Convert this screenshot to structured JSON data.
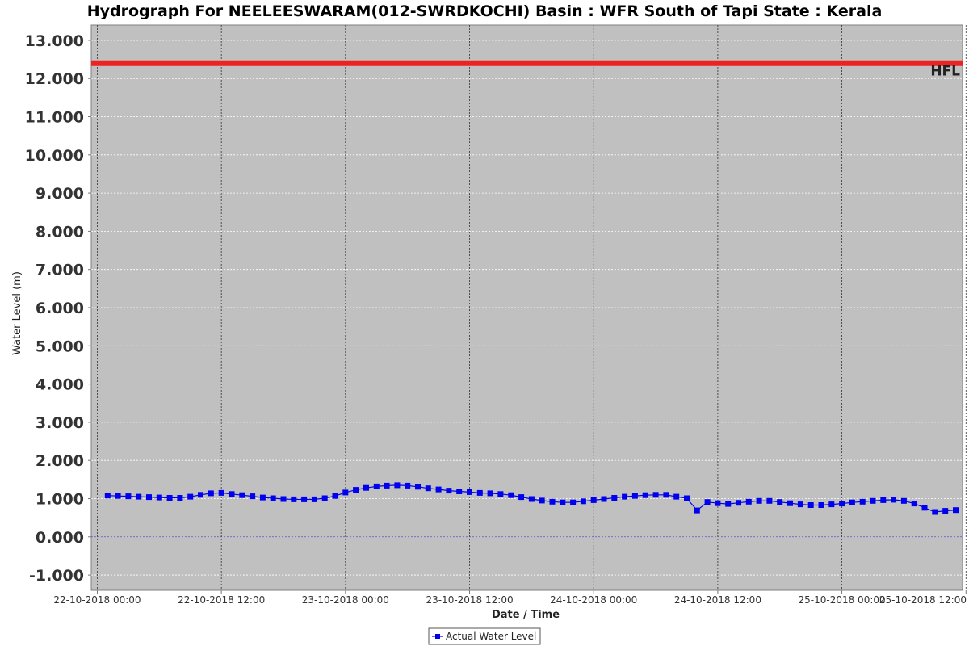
{
  "chart_data": {
    "type": "line",
    "title": "Hydrograph For NEELEESWARAM(012-SWRDKOCHI) Basin : WFR South of Tapi State : Kerala",
    "xlabel": "Date / Time",
    "ylabel": "Water Level (m)",
    "ylim": [
      -1.4,
      13.4
    ],
    "y_ticks": [
      "-1.000",
      "0.000",
      "1.000",
      "2.000",
      "3.000",
      "4.000",
      "5.000",
      "6.000",
      "7.000",
      "8.000",
      "9.000",
      "10.000",
      "11.000",
      "12.000",
      "13.000"
    ],
    "y_tick_values": [
      -1,
      0,
      1,
      2,
      3,
      4,
      5,
      6,
      7,
      8,
      9,
      10,
      11,
      12,
      13
    ],
    "x_range": [
      "2018-10-21T23:25",
      "2018-10-25T11:40"
    ],
    "x_ticks": [
      {
        "value": "2018-10-22T00:00",
        "label": "22-10-2018 00:00"
      },
      {
        "value": "2018-10-22T12:00",
        "label": "22-10-2018 12:00"
      },
      {
        "value": "2018-10-23T00:00",
        "label": "23-10-2018 00:00"
      },
      {
        "value": "2018-10-23T12:00",
        "label": "23-10-2018 12:00"
      },
      {
        "value": "2018-10-24T00:00",
        "label": "24-10-2018 00:00"
      },
      {
        "value": "2018-10-24T12:00",
        "label": "24-10-2018 12:00"
      },
      {
        "value": "2018-10-25T00:00",
        "label": "25-10-2018 00:00"
      },
      {
        "value": "2018-10-25T12:00",
        "label": "25-10-2018 12:00"
      }
    ],
    "grid": true,
    "reference_line": {
      "label": "HFL",
      "value": 12.4,
      "color": "#ee2222"
    },
    "series": [
      {
        "name": "Actual Water Level",
        "color": "#0000ee",
        "marker": "square",
        "x": [
          "2018-10-22T01:00",
          "2018-10-22T02:00",
          "2018-10-22T03:00",
          "2018-10-22T04:00",
          "2018-10-22T05:00",
          "2018-10-22T06:00",
          "2018-10-22T07:00",
          "2018-10-22T08:00",
          "2018-10-22T09:00",
          "2018-10-22T10:00",
          "2018-10-22T11:00",
          "2018-10-22T12:00",
          "2018-10-22T13:00",
          "2018-10-22T14:00",
          "2018-10-22T15:00",
          "2018-10-22T16:00",
          "2018-10-22T17:00",
          "2018-10-22T18:00",
          "2018-10-22T19:00",
          "2018-10-22T20:00",
          "2018-10-22T21:00",
          "2018-10-22T22:00",
          "2018-10-22T23:00",
          "2018-10-23T00:00",
          "2018-10-23T01:00",
          "2018-10-23T02:00",
          "2018-10-23T03:00",
          "2018-10-23T04:00",
          "2018-10-23T05:00",
          "2018-10-23T06:00",
          "2018-10-23T07:00",
          "2018-10-23T08:00",
          "2018-10-23T09:00",
          "2018-10-23T10:00",
          "2018-10-23T11:00",
          "2018-10-23T12:00",
          "2018-10-23T13:00",
          "2018-10-23T14:00",
          "2018-10-23T15:00",
          "2018-10-23T16:00",
          "2018-10-23T17:00",
          "2018-10-23T18:00",
          "2018-10-23T19:00",
          "2018-10-23T20:00",
          "2018-10-23T21:00",
          "2018-10-23T22:00",
          "2018-10-23T23:00",
          "2018-10-24T00:00",
          "2018-10-24T01:00",
          "2018-10-24T02:00",
          "2018-10-24T03:00",
          "2018-10-24T04:00",
          "2018-10-24T05:00",
          "2018-10-24T06:00",
          "2018-10-24T07:00",
          "2018-10-24T08:00",
          "2018-10-24T09:00",
          "2018-10-24T10:00",
          "2018-10-24T11:00",
          "2018-10-24T12:00",
          "2018-10-24T13:00",
          "2018-10-24T14:00",
          "2018-10-24T15:00",
          "2018-10-24T16:00",
          "2018-10-24T17:00",
          "2018-10-24T18:00",
          "2018-10-24T19:00",
          "2018-10-24T20:00",
          "2018-10-24T21:00",
          "2018-10-24T22:00",
          "2018-10-24T23:00",
          "2018-10-25T00:00",
          "2018-10-25T01:00",
          "2018-10-25T02:00",
          "2018-10-25T03:00",
          "2018-10-25T04:00",
          "2018-10-25T05:00",
          "2018-10-25T06:00",
          "2018-10-25T07:00",
          "2018-10-25T08:00",
          "2018-10-25T09:00",
          "2018-10-25T10:00",
          "2018-10-25T11:00"
        ],
        "y": [
          1.08,
          1.07,
          1.06,
          1.05,
          1.04,
          1.03,
          1.02,
          1.02,
          1.05,
          1.1,
          1.14,
          1.15,
          1.12,
          1.09,
          1.06,
          1.03,
          1.01,
          0.99,
          0.98,
          0.98,
          0.98,
          1.01,
          1.07,
          1.16,
          1.23,
          1.28,
          1.32,
          1.34,
          1.35,
          1.34,
          1.31,
          1.27,
          1.24,
          1.21,
          1.19,
          1.17,
          1.15,
          1.14,
          1.12,
          1.09,
          1.04,
          0.99,
          0.95,
          0.92,
          0.9,
          0.9,
          0.93,
          0.96,
          0.99,
          1.02,
          1.05,
          1.07,
          1.09,
          1.1,
          1.1,
          1.05,
          1.01,
          0.69,
          0.91,
          0.88,
          0.86,
          0.89,
          0.92,
          0.94,
          0.94,
          0.91,
          0.88,
          0.85,
          0.83,
          0.83,
          0.85,
          0.87,
          0.9,
          0.92,
          0.94,
          0.96,
          0.97,
          0.94,
          0.87,
          0.76,
          0.65,
          0.68,
          0.7
        ]
      }
    ],
    "legend": {
      "position": "bottom-center",
      "entries": [
        "Actual Water Level"
      ]
    }
  }
}
